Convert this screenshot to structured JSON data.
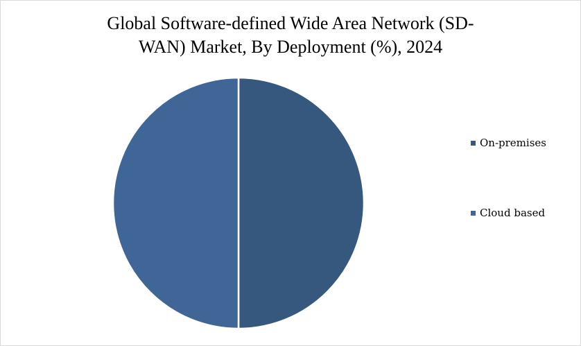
{
  "chart_data": {
    "type": "pie",
    "title_lines": [
      "Global Software-defined Wide Area Network (SD-",
      "WAN) Market, By Deployment (%), 2024"
    ],
    "categories": [
      "On-premises",
      "Cloud based"
    ],
    "values": [
      50,
      50
    ],
    "colors": [
      "#36587f",
      "#3f6696"
    ],
    "legend_position": "right"
  }
}
